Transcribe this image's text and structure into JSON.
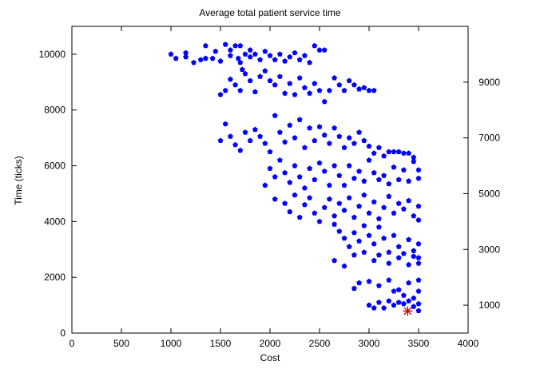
{
  "chart_data": {
    "type": "scatter",
    "title": "Average total patient service time",
    "xlabel": "Cost",
    "ylabel": "Time (ticks)",
    "xlim": [
      0,
      4000
    ],
    "ylim": [
      0,
      11000
    ],
    "xticks": [
      0,
      500,
      1000,
      1500,
      2000,
      2500,
      3000,
      3500,
      4000
    ],
    "yticks": [
      0,
      2000,
      4000,
      6000,
      8000,
      10000
    ],
    "y2ticks": [
      1000,
      3000,
      5000,
      7000,
      9000
    ],
    "grid": false,
    "series": [
      {
        "marker": "pentagon",
        "color": "#0000ff",
        "points": [
          [
            1000,
            10000
          ],
          [
            1050,
            9850
          ],
          [
            1150,
            10050
          ],
          [
            1150,
            9900
          ],
          [
            1230,
            9700
          ],
          [
            1300,
            9800
          ],
          [
            1350,
            10300
          ],
          [
            1350,
            9850
          ],
          [
            1420,
            9850
          ],
          [
            1450,
            10100
          ],
          [
            1500,
            9750
          ],
          [
            1550,
            10350
          ],
          [
            1600,
            10150
          ],
          [
            1600,
            9950
          ],
          [
            1650,
            10300
          ],
          [
            1680,
            9850
          ],
          [
            1700,
            10300
          ],
          [
            1700,
            9700
          ],
          [
            1750,
            10000
          ],
          [
            1800,
            10150
          ],
          [
            1800,
            9900
          ],
          [
            1850,
            10000
          ],
          [
            1900,
            9800
          ],
          [
            1950,
            10100
          ],
          [
            2000,
            9950
          ],
          [
            2050,
            9800
          ],
          [
            2100,
            10000
          ],
          [
            2150,
            9750
          ],
          [
            2200,
            9900
          ],
          [
            2250,
            10050
          ],
          [
            2300,
            9800
          ],
          [
            2350,
            9950
          ],
          [
            2400,
            9700
          ],
          [
            2450,
            10300
          ],
          [
            2500,
            10150
          ],
          [
            2550,
            10150
          ],
          [
            1500,
            8550
          ],
          [
            1550,
            8700
          ],
          [
            1600,
            9100
          ],
          [
            1650,
            8900
          ],
          [
            1700,
            8700
          ],
          [
            1720,
            9450
          ],
          [
            1750,
            9300
          ],
          [
            1800,
            9050
          ],
          [
            1850,
            8650
          ],
          [
            1900,
            9200
          ],
          [
            1950,
            9400
          ],
          [
            2000,
            9050
          ],
          [
            2050,
            8900
          ],
          [
            2100,
            9200
          ],
          [
            2150,
            8600
          ],
          [
            2200,
            8950
          ],
          [
            2250,
            8550
          ],
          [
            2300,
            9150
          ],
          [
            2350,
            8800
          ],
          [
            2400,
            8600
          ],
          [
            2450,
            8950
          ],
          [
            2500,
            8700
          ],
          [
            2550,
            8300
          ],
          [
            2600,
            8700
          ],
          [
            2650,
            9150
          ],
          [
            2700,
            8900
          ],
          [
            2750,
            8700
          ],
          [
            2800,
            9050
          ],
          [
            2850,
            8900
          ],
          [
            2900,
            8750
          ],
          [
            2950,
            8800
          ],
          [
            3000,
            8700
          ],
          [
            3050,
            8700
          ],
          [
            1500,
            6900
          ],
          [
            1550,
            7500
          ],
          [
            1600,
            7050
          ],
          [
            1650,
            6750
          ],
          [
            1700,
            6550
          ],
          [
            1750,
            7200
          ],
          [
            1800,
            6900
          ],
          [
            1850,
            7300
          ],
          [
            1900,
            7050
          ],
          [
            1950,
            6800
          ],
          [
            2000,
            6500
          ],
          [
            2050,
            7800
          ],
          [
            2100,
            7200
          ],
          [
            2150,
            6850
          ],
          [
            2200,
            7450
          ],
          [
            2250,
            7000
          ],
          [
            2300,
            7650
          ],
          [
            2350,
            6650
          ],
          [
            2400,
            7350
          ],
          [
            2450,
            6900
          ],
          [
            2500,
            7400
          ],
          [
            2550,
            7100
          ],
          [
            2600,
            6800
          ],
          [
            2650,
            7350
          ],
          [
            2700,
            7050
          ],
          [
            2750,
            6650
          ],
          [
            2800,
            7000
          ],
          [
            2850,
            6800
          ],
          [
            2900,
            7200
          ],
          [
            2950,
            6900
          ],
          [
            3000,
            6700
          ],
          [
            3050,
            6450
          ],
          [
            3100,
            6650
          ],
          [
            3150,
            6350
          ],
          [
            3200,
            6500
          ],
          [
            3250,
            6500
          ],
          [
            3300,
            6500
          ],
          [
            3350,
            6450
          ],
          [
            3400,
            6450
          ],
          [
            3450,
            6300
          ],
          [
            1950,
            5300
          ],
          [
            2000,
            5900
          ],
          [
            2050,
            5600
          ],
          [
            2100,
            6200
          ],
          [
            2150,
            5750
          ],
          [
            2200,
            5400
          ],
          [
            2250,
            6000
          ],
          [
            2300,
            5600
          ],
          [
            2350,
            5200
          ],
          [
            2400,
            5900
          ],
          [
            2450,
            5500
          ],
          [
            2500,
            6100
          ],
          [
            2550,
            5800
          ],
          [
            2600,
            5300
          ],
          [
            2650,
            6000
          ],
          [
            2700,
            5650
          ],
          [
            2750,
            5300
          ],
          [
            2800,
            6000
          ],
          [
            2850,
            5550
          ],
          [
            2900,
            5800
          ],
          [
            2950,
            5450
          ],
          [
            3000,
            6200
          ],
          [
            3050,
            5750
          ],
          [
            3100,
            5500
          ],
          [
            3150,
            5650
          ],
          [
            3200,
            5350
          ],
          [
            3250,
            5950
          ],
          [
            3300,
            5500
          ],
          [
            3350,
            5850
          ],
          [
            3400,
            5450
          ],
          [
            3450,
            6150
          ],
          [
            3500,
            5850
          ],
          [
            3500,
            5550
          ],
          [
            2050,
            4800
          ],
          [
            2150,
            4650
          ],
          [
            2200,
            4350
          ],
          [
            2250,
            4950
          ],
          [
            2300,
            4150
          ],
          [
            2350,
            4600
          ],
          [
            2400,
            4850
          ],
          [
            2450,
            4300
          ],
          [
            2500,
            4000
          ],
          [
            2550,
            4500
          ],
          [
            2600,
            4800
          ],
          [
            2650,
            4200
          ],
          [
            2700,
            4650
          ],
          [
            2750,
            4400
          ],
          [
            2800,
            4850
          ],
          [
            2850,
            4150
          ],
          [
            2900,
            4550
          ],
          [
            2950,
            4950
          ],
          [
            3000,
            4300
          ],
          [
            3050,
            4700
          ],
          [
            3100,
            4100
          ],
          [
            3150,
            4500
          ],
          [
            3200,
            4900
          ],
          [
            3250,
            4300
          ],
          [
            3300,
            4650
          ],
          [
            3350,
            4450
          ],
          [
            3400,
            4750
          ],
          [
            3450,
            4200
          ],
          [
            3500,
            4550
          ],
          [
            3500,
            4050
          ],
          [
            2650,
            3900
          ],
          [
            2700,
            3650
          ],
          [
            2750,
            3400
          ],
          [
            2800,
            3100
          ],
          [
            2850,
            3600
          ],
          [
            2900,
            3300
          ],
          [
            2950,
            3850
          ],
          [
            3000,
            3500
          ],
          [
            3050,
            3200
          ],
          [
            3100,
            3800
          ],
          [
            3150,
            3400
          ],
          [
            3200,
            2900
          ],
          [
            3250,
            3500
          ],
          [
            3300,
            3100
          ],
          [
            3350,
            2850
          ],
          [
            3400,
            3350
          ],
          [
            3450,
            2950
          ],
          [
            3500,
            2700
          ],
          [
            3500,
            3200
          ],
          [
            2650,
            2600
          ],
          [
            2750,
            2400
          ],
          [
            2850,
            2800
          ],
          [
            2950,
            2900
          ],
          [
            3050,
            2600
          ],
          [
            3100,
            2800
          ],
          [
            3200,
            2500
          ],
          [
            3300,
            2700
          ],
          [
            3400,
            2450
          ],
          [
            3450,
            2750
          ],
          [
            3500,
            2500
          ],
          [
            2850,
            1600
          ],
          [
            2900,
            1800
          ],
          [
            3000,
            1850
          ],
          [
            3100,
            1700
          ],
          [
            3200,
            1900
          ],
          [
            3250,
            1500
          ],
          [
            3300,
            1550
          ],
          [
            3350,
            1350
          ],
          [
            3400,
            1800
          ],
          [
            3450,
            1250
          ],
          [
            3500,
            1500
          ],
          [
            3500,
            1900
          ],
          [
            3000,
            1000
          ],
          [
            3050,
            900
          ],
          [
            3100,
            1100
          ],
          [
            3150,
            900
          ],
          [
            3200,
            1150
          ],
          [
            3250,
            1000
          ],
          [
            3300,
            1100
          ],
          [
            3350,
            1050
          ],
          [
            3400,
            1150
          ],
          [
            3450,
            950
          ],
          [
            3500,
            800
          ],
          [
            3500,
            1050
          ]
        ]
      },
      {
        "marker": "star",
        "color": "#cc0000",
        "points": [
          [
            3390,
            790
          ]
        ]
      }
    ]
  }
}
